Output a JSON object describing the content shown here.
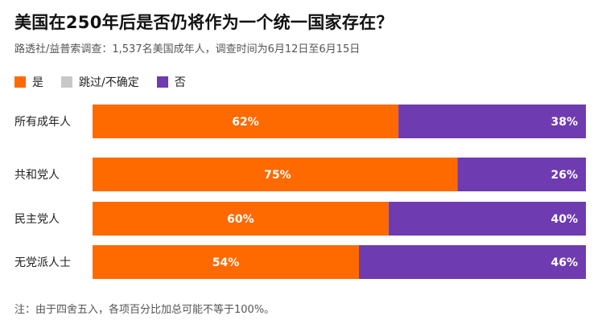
{
  "header": {
    "title": "美国在250年后是否仍将作为一个统一国家存在？",
    "subtitle": "路透社/益普索调查：1,537名美国成年人，调查时间为6月12日至6月15日"
  },
  "footer": {
    "note": "注：由于四舍五入，各项百分比加总可能不等于100%。"
  },
  "colors": {
    "yes": "#FF6A00",
    "unsure": "#C8C8C8",
    "no": "#6E3BB0"
  },
  "chart_data": {
    "type": "bar",
    "orientation": "horizontal",
    "stacked": true,
    "categories": [
      "所有成年人",
      "共和党人",
      "民主党人",
      "无党派人士"
    ],
    "series": [
      {
        "name": "是",
        "color": "#FF6A00",
        "values": [
          62,
          75,
          60,
          54
        ],
        "labels": [
          "62%",
          "75%",
          "60%",
          "54%"
        ]
      },
      {
        "name": "跳过/不确定",
        "color": "#C8C8C8",
        "values": [
          0,
          0,
          0,
          0
        ],
        "labels": [
          "",
          "",
          "",
          ""
        ]
      },
      {
        "name": "否",
        "color": "#6E3BB0",
        "values": [
          38,
          26,
          40,
          46
        ],
        "labels": [
          "38%",
          "26%",
          "40%",
          "46%"
        ]
      }
    ],
    "xlim": [
      0,
      100
    ],
    "legend": "top-left",
    "grid": false
  }
}
